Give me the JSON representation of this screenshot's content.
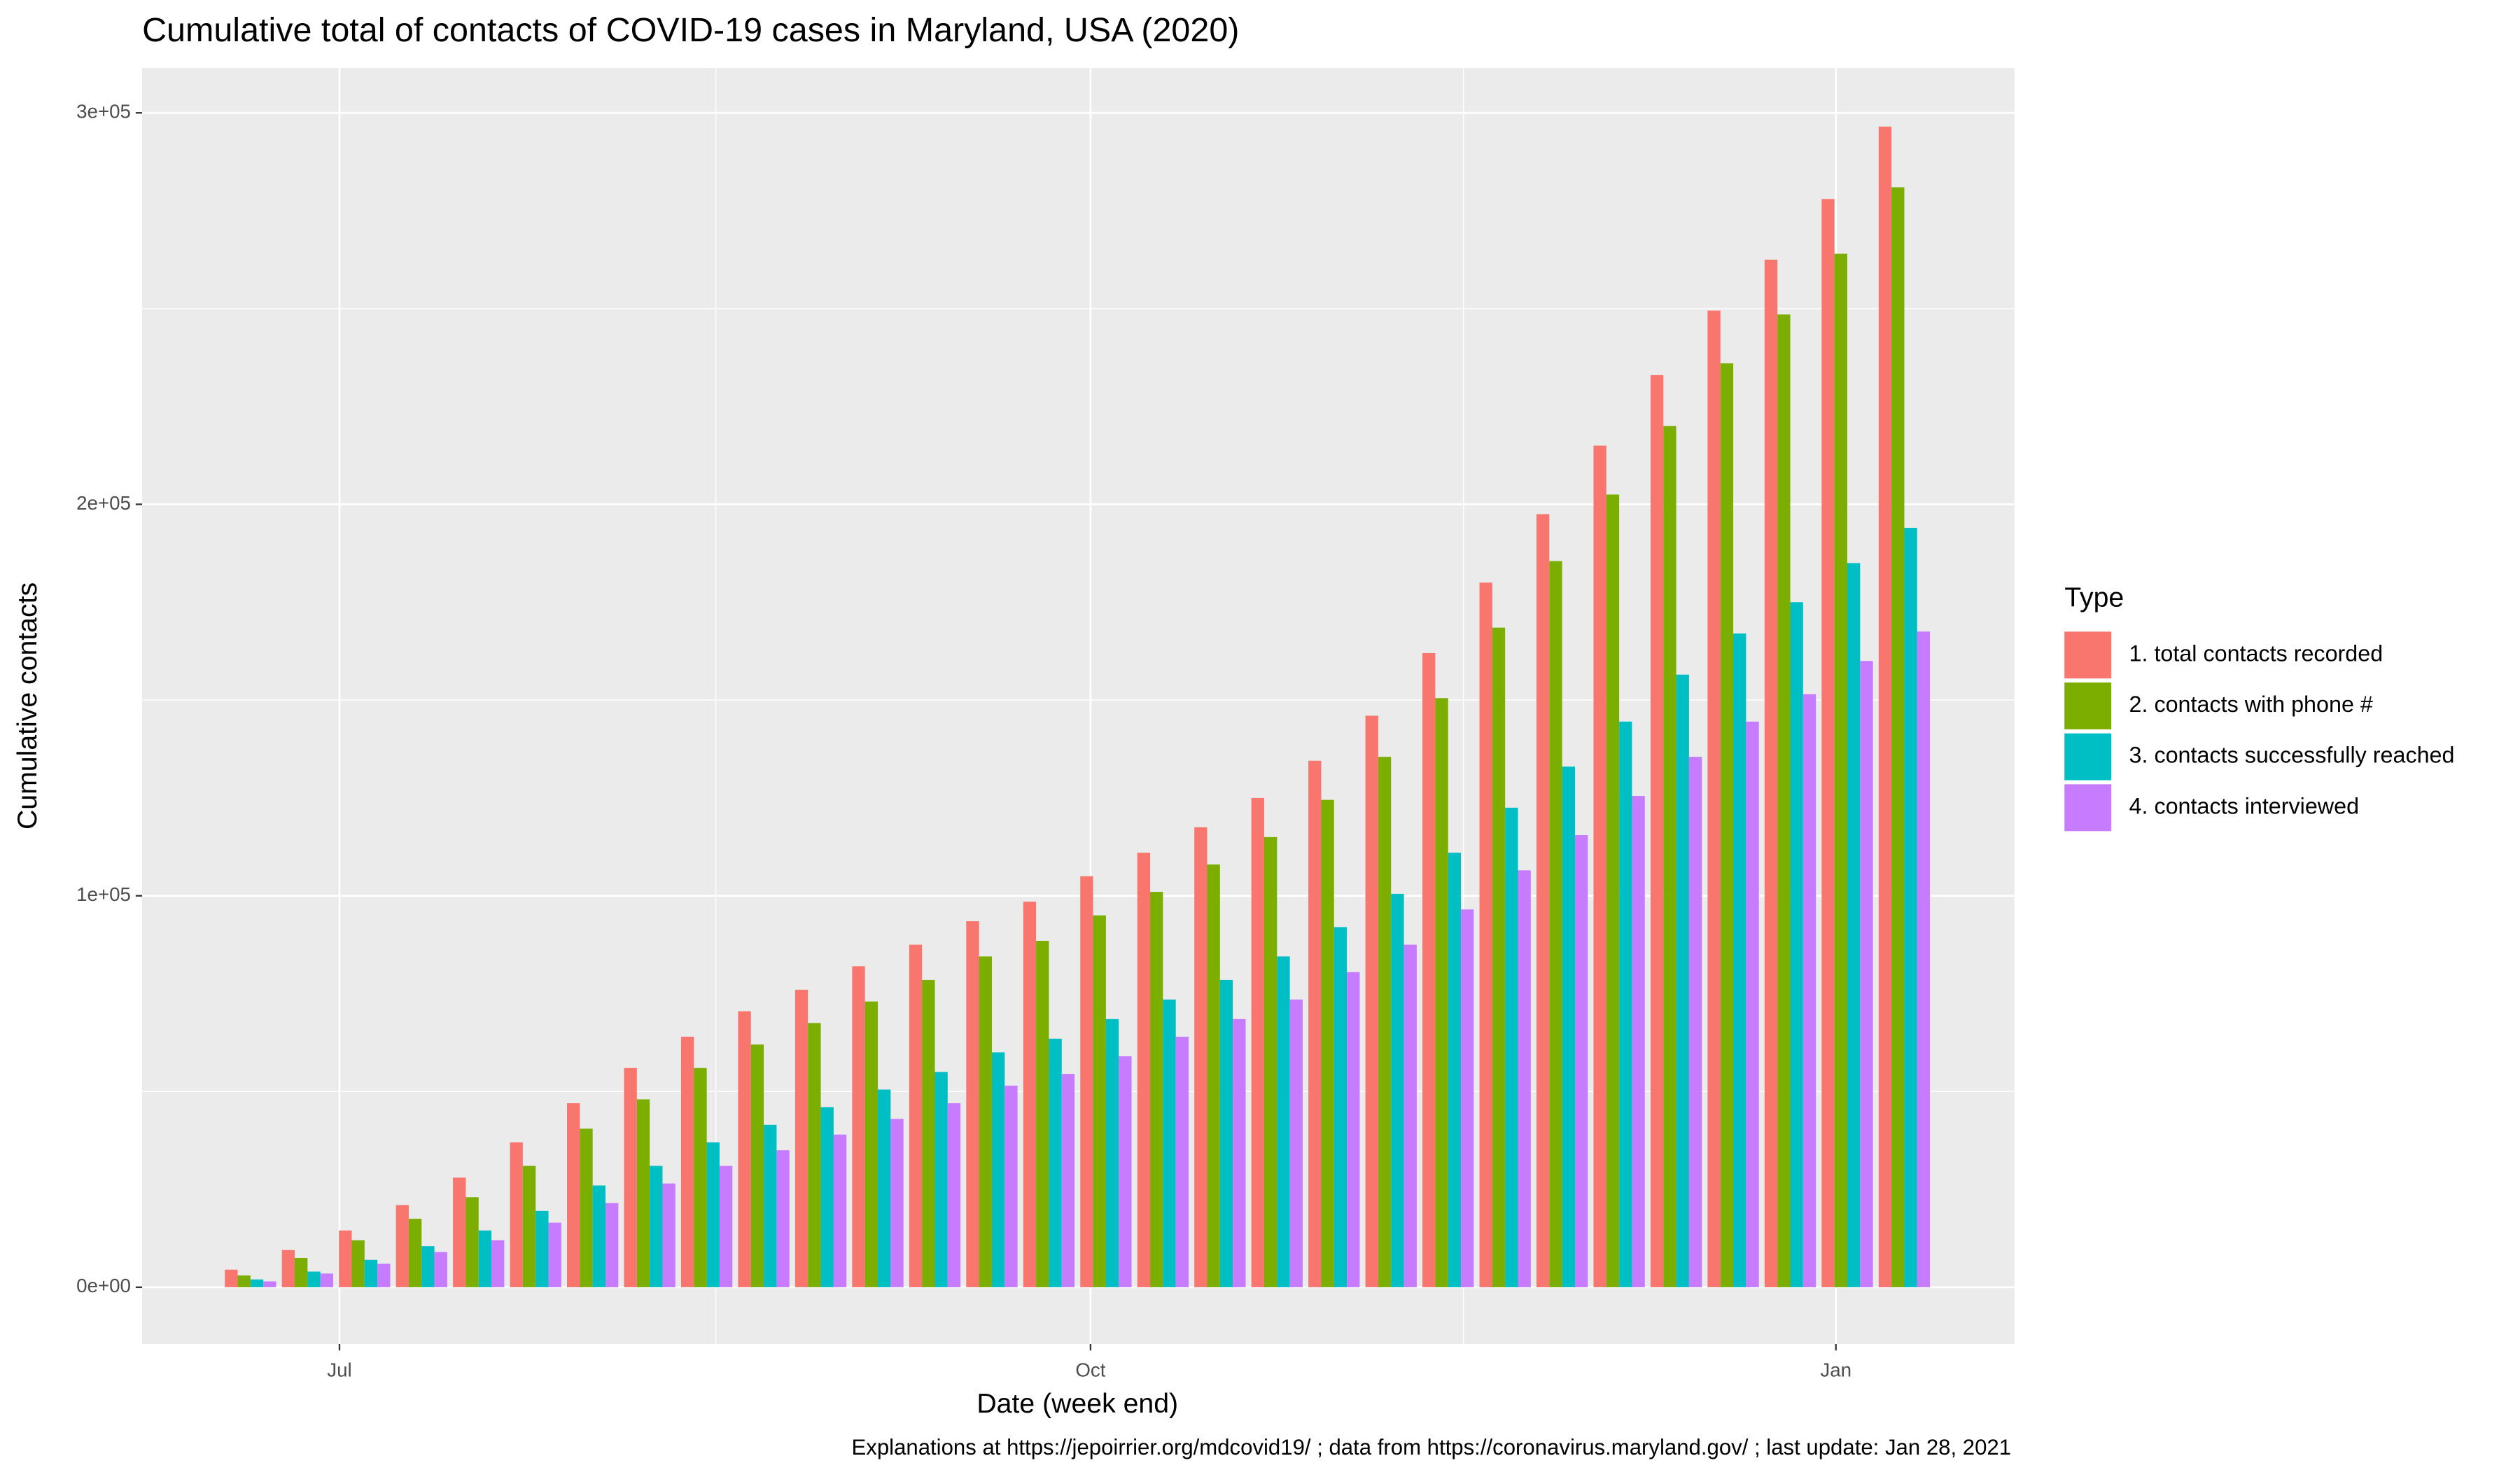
{
  "chart_data": {
    "type": "bar",
    "title": "Cumulative total of contacts of COVID-19 cases in Maryland, USA (2020)",
    "x_label": "Date (week end)",
    "y_label": "Cumulative contacts",
    "caption": "Explanations at https://jepoirrier.org/mdcovid19/ ; data from https://coronavirus.maryland.gov/ ; last update: Jan 28, 2021",
    "legend_title": "Type",
    "legend_position": "right",
    "grid": true,
    "categories": [
      null,
      null,
      null,
      null,
      null,
      null,
      null,
      null,
      null,
      null,
      null,
      null,
      null,
      null,
      null,
      null,
      null,
      null,
      null,
      null,
      null,
      null,
      null,
      null,
      null,
      null,
      null,
      null,
      null,
      null
    ],
    "xlim": [
      -1.9,
      30.93
    ],
    "xticks": [
      {
        "value": 1.56,
        "label": "Jul"
      },
      {
        "value": 14.73,
        "label": "Oct"
      },
      {
        "value": 27.8,
        "label": "Jan"
      }
    ],
    "xminor_ticks": [
      8.16,
      21.27
    ],
    "ylim": [
      -14500,
      311500
    ],
    "yticks": [
      {
        "value": 0,
        "label": "0e+00"
      },
      {
        "value": 100000,
        "label": "1e+05"
      },
      {
        "value": 200000,
        "label": "2e+05"
      },
      {
        "value": 300000,
        "label": "3e+05"
      }
    ],
    "yminor_ticks": [
      50000,
      150000,
      250000
    ],
    "series": [
      {
        "name": "1. total contacts recorded",
        "color": "#F8766D",
        "values": [
          4500,
          9500,
          14500,
          21000,
          28000,
          37000,
          47000,
          56000,
          64000,
          70500,
          76000,
          82000,
          87500,
          93500,
          98500,
          105000,
          111000,
          117500,
          125000,
          134500,
          146000,
          162000,
          180000,
          197500,
          215000,
          233000,
          249500,
          262500,
          278000,
          296500
        ]
      },
      {
        "name": "2. contacts with phone #",
        "color": "#7CAE00",
        "values": [
          3000,
          7500,
          12000,
          17500,
          23000,
          31000,
          40500,
          48000,
          56000,
          62000,
          67500,
          73000,
          78500,
          84500,
          88500,
          95000,
          101000,
          108000,
          115000,
          124500,
          135500,
          150500,
          168500,
          185500,
          202500,
          220000,
          236000,
          248500,
          264000,
          281000
        ]
      },
      {
        "name": "3. contacts successfully reached",
        "color": "#00BFC4",
        "values": [
          2000,
          4000,
          7000,
          10500,
          14500,
          19500,
          26000,
          31000,
          37000,
          41500,
          46000,
          50500,
          55000,
          60000,
          63500,
          68500,
          73500,
          78500,
          84500,
          92000,
          100500,
          111000,
          122500,
          133000,
          144500,
          156500,
          167000,
          175000,
          185000,
          194000
        ]
      },
      {
        "name": "4. contacts interviewed",
        "color": "#C77CFF",
        "values": [
          1500,
          3500,
          6000,
          9000,
          12000,
          16500,
          21500,
          26500,
          31000,
          35000,
          39000,
          43000,
          47000,
          51500,
          54500,
          59000,
          64000,
          68500,
          73500,
          80500,
          87500,
          96500,
          106500,
          115500,
          125500,
          135500,
          144500,
          151500,
          160000,
          167500
        ]
      }
    ]
  }
}
